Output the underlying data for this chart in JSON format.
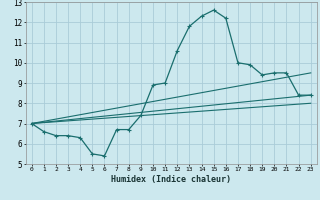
{
  "xlabel": "Humidex (Indice chaleur)",
  "background_color": "#cce8ee",
  "grid_color": "#aaccd8",
  "line_color": "#1a6e6e",
  "xlim": [
    -0.5,
    23.5
  ],
  "ylim": [
    5,
    13
  ],
  "xticks": [
    0,
    1,
    2,
    3,
    4,
    5,
    6,
    7,
    8,
    9,
    10,
    11,
    12,
    13,
    14,
    15,
    16,
    17,
    18,
    19,
    20,
    21,
    22,
    23
  ],
  "yticks": [
    5,
    6,
    7,
    8,
    9,
    10,
    11,
    12,
    13
  ],
  "main_x": [
    0,
    1,
    2,
    3,
    4,
    5,
    6,
    7,
    8,
    9,
    10,
    11,
    12,
    13,
    14,
    15,
    16,
    17,
    18,
    19,
    20,
    21,
    22,
    23
  ],
  "main_y": [
    7.0,
    6.6,
    6.4,
    6.4,
    6.3,
    5.5,
    5.4,
    6.7,
    6.7,
    7.4,
    8.9,
    9.0,
    10.6,
    11.8,
    12.3,
    12.6,
    12.2,
    10.0,
    9.9,
    9.4,
    9.5,
    9.5,
    8.4,
    8.4
  ],
  "line1_x": [
    0,
    23
  ],
  "line1_y": [
    7.0,
    8.4
  ],
  "line2_x": [
    0,
    23
  ],
  "line2_y": [
    7.0,
    9.5
  ],
  "line3_x": [
    0,
    23
  ],
  "line3_y": [
    7.0,
    8.0
  ]
}
